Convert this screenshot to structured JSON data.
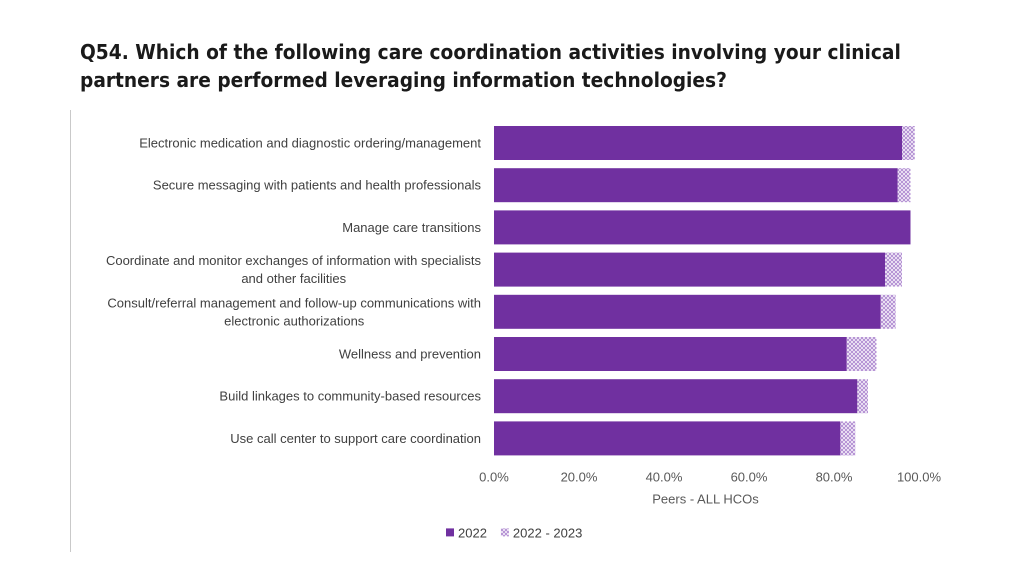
{
  "slide": {
    "title": "Q54. Which of the following care coordination activities involving your clinical partners are performed leveraging information technologies?"
  },
  "colors": {
    "series_2022": "#7030a0",
    "series_2022_2023": "#b38fd3",
    "hatch_bg": "#ffffff"
  },
  "chart_data": {
    "type": "bar",
    "orientation": "horizontal",
    "stacked": true,
    "categories": [
      [
        "Electronic medication and diagnostic ordering/management"
      ],
      [
        "Secure messaging with patients and health professionals"
      ],
      [
        "Manage care transitions"
      ],
      [
        "Coordinate and monitor exchanges of information with specialists",
        "and other facilities"
      ],
      [
        "Consult/referral management and follow-up communications with",
        "electronic authorizations"
      ],
      [
        "Wellness and prevention"
      ],
      [
        "Build linkages to community-based resources"
      ],
      [
        "Use call center to support care coordination"
      ]
    ],
    "series": [
      {
        "name": "2022",
        "values": [
          0.96,
          0.95,
          0.98,
          0.92,
          0.91,
          0.83,
          0.855,
          0.815
        ]
      },
      {
        "name": "2022 - 2023",
        "values": [
          0.03,
          0.03,
          0.0,
          0.04,
          0.035,
          0.07,
          0.025,
          0.035
        ]
      }
    ],
    "xlabel": "Peers - ALL HCOs",
    "xlim": [
      0,
      1
    ],
    "xticks": [
      "0.0%",
      "20.0%",
      "40.0%",
      "60.0%",
      "80.0%",
      "100.0%"
    ],
    "xtick_values": [
      0,
      0.2,
      0.4,
      0.6,
      0.8,
      1.0
    ],
    "grid": false,
    "legend_position": "bottom"
  }
}
